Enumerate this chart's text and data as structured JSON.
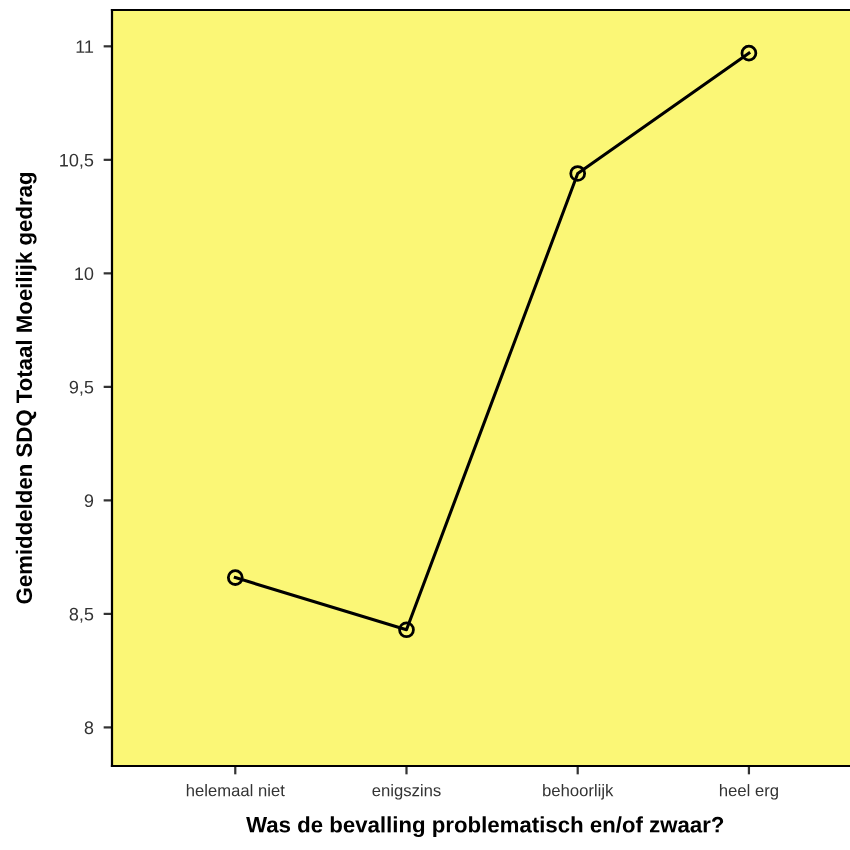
{
  "chart_data": {
    "type": "line",
    "xlabel": "Was de bevalling problematisch en/of zwaar?",
    "ylabel": "Gemiddelden SDQ Totaal Moeilijk gedrag",
    "categories": [
      "helemaal niet",
      "enigszins",
      "behoorlijk",
      "heel erg"
    ],
    "series": [
      {
        "color": "#000000",
        "values": [
          8.66,
          8.43,
          10.44,
          10.97
        ]
      }
    ],
    "ylim": [
      7.83,
      11.16
    ],
    "yticks": [
      8,
      {
        "value": 8.5,
        "label": "8,5"
      },
      9,
      {
        "value": 9.5,
        "label": "9,5"
      },
      10,
      {
        "value": 10.5,
        "label": "10,5"
      },
      11
    ],
    "marker": "circle",
    "line_style": "solid",
    "grid": false,
    "legend": false
  }
}
